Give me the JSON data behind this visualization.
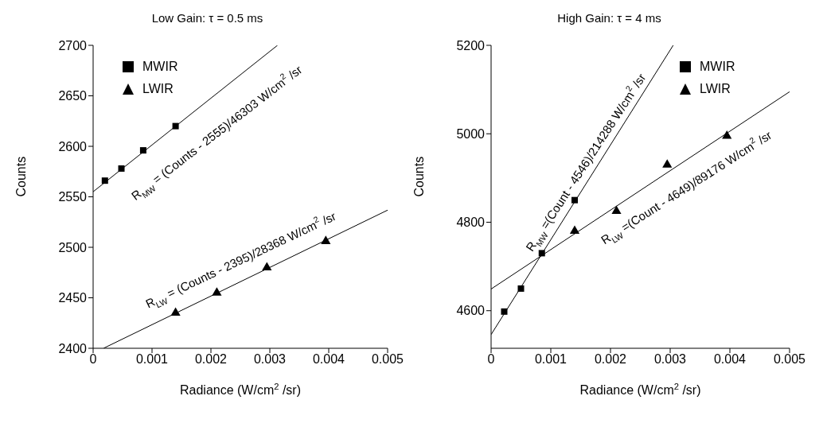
{
  "chart_data": [
    {
      "type": "scatter",
      "title": "Low Gain: τ = 0.5 ms",
      "xlabel": "Radiance (W/cm$^{2}$/sr)",
      "ylabel": "Counts",
      "xlim": [
        0,
        0.005
      ],
      "xticks": [
        0,
        0.001,
        0.002,
        0.003,
        0.004,
        0.005
      ],
      "ylim": [
        2400,
        2700
      ],
      "yticks": [
        2400,
        2450,
        2500,
        2550,
        2600,
        2650,
        2700
      ],
      "grid": false,
      "legend": "top left",
      "series": [
        {
          "name": "MWIR",
          "marker": "square",
          "color": "#000000",
          "x": [
            0.0002,
            0.00048,
            0.00085,
            0.0014
          ],
          "values": [
            2566,
            2578,
            2596,
            2620
          ]
        },
        {
          "name": "LWIR",
          "marker": "triangle",
          "color": "#000000",
          "x": [
            0.0014,
            0.0021,
            0.00295,
            0.00395
          ],
          "values": [
            2435,
            2455,
            2480,
            2506
          ]
        },
        {
          "type": "line",
          "color": "#000000",
          "x": [
            0,
            0.00313
          ],
          "values": [
            2555,
            2700
          ]
        },
        {
          "type": "line",
          "color": "#000000",
          "x": [
            0.00018,
            0.005
          ],
          "values": [
            2400.1,
            2536.8
          ]
        }
      ],
      "annotations": [
        "R$_{MW}$= (Counts - 2555)/46303 W/cm$^{2}$/sr",
        "R$_{LW}$= (Counts - 2395)/28368 W/cm$^{2}$/sr"
      ]
    },
    {
      "type": "scatter",
      "title": "High Gain: τ = 4 ms",
      "xlabel": "Radiance (W/cm$^{2}$/sr)",
      "ylabel": "Counts",
      "xlim": [
        0,
        0.005
      ],
      "xticks": [
        0,
        0.001,
        0.002,
        0.003,
        0.004,
        0.005
      ],
      "ylim": [
        4515,
        5200
      ],
      "yticks": [
        4600,
        4800,
        5000,
        5200
      ],
      "grid": false,
      "legend": "top right",
      "series": [
        {
          "name": "MWIR",
          "marker": "square",
          "color": "#000000",
          "x": [
            0.00022,
            0.0005,
            0.00085,
            0.0014
          ],
          "values": [
            4598,
            4650,
            4730,
            4850
          ]
        },
        {
          "name": "LWIR",
          "marker": "triangle",
          "color": "#000000",
          "x": [
            0.0014,
            0.0021,
            0.00295,
            0.00395
          ],
          "values": [
            4780,
            4825,
            4930,
            4995
          ]
        },
        {
          "type": "line",
          "color": "#000000",
          "x": [
            0,
            0.00305
          ],
          "values": [
            4546,
            5200
          ]
        },
        {
          "type": "line",
          "color": "#000000",
          "x": [
            0,
            0.005
          ],
          "values": [
            4649,
            5095
          ]
        }
      ],
      "annotations": [
        "R$_{MW}$=(Count - 4546)/214288 W/cm$^{2}$/sr",
        "R$_{LW}$=(Count - 4649)/89176 W/cm$^{2}$/sr"
      ]
    }
  ]
}
